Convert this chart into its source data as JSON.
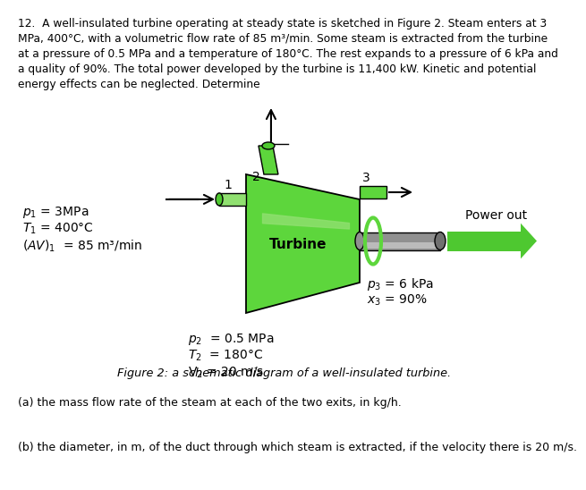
{
  "title_text": "12.  A well-insulated turbine operating at steady state is sketched in Figure 2. Steam enters at 3\nMPa, 400°C, with a volumetric flow rate of 85 m³/min. Some steam is extracted from the turbine\nat a pressure of 0.5 MPa and a temperature of 180°C. The rest expands to a pressure of 6 kPa and\na quality of 90%. The total power developed by the turbine is 11,400 kW. Kinetic and potential\nenergy effects can be neglected. Determine",
  "figure_caption": "Figure 2: a schematic diagram of a well-insulated turbine.",
  "part_a": "(a) the mass flow rate of the steam at each of the two exits, in kg/h.",
  "part_b": "(b) the diameter, in m, of the duct through which steam is extracted, if the velocity there is 20 m/s.",
  "label_p1": "$p_1$ = 3MPa",
  "label_T1": "$T_1$ = 400°C",
  "label_AV1": "$(AV)_1$  = 85 m³/min",
  "label_p2": "$p_2$  = 0.5 MPa",
  "label_T2": "$T_2$  = 180°C",
  "label_V2": "V$_2$ = 20 m/s",
  "label_p3": "$p_3$ = 6 kPa",
  "label_x3": "$x_3$ = 90%",
  "turbine_label": "Turbine",
  "power_label": "Power out",
  "node1": "1",
  "node2": "2",
  "node3": "3",
  "green_bright": "#5DD63C",
  "green_dark": "#3C9C20",
  "green_light": "#90E070",
  "green_mid": "#4EC830",
  "gray_dark": "#707070",
  "gray_mid": "#909090",
  "gray_light": "#BBBBBB",
  "bg_color": "#ffffff",
  "text_color": "#000000"
}
